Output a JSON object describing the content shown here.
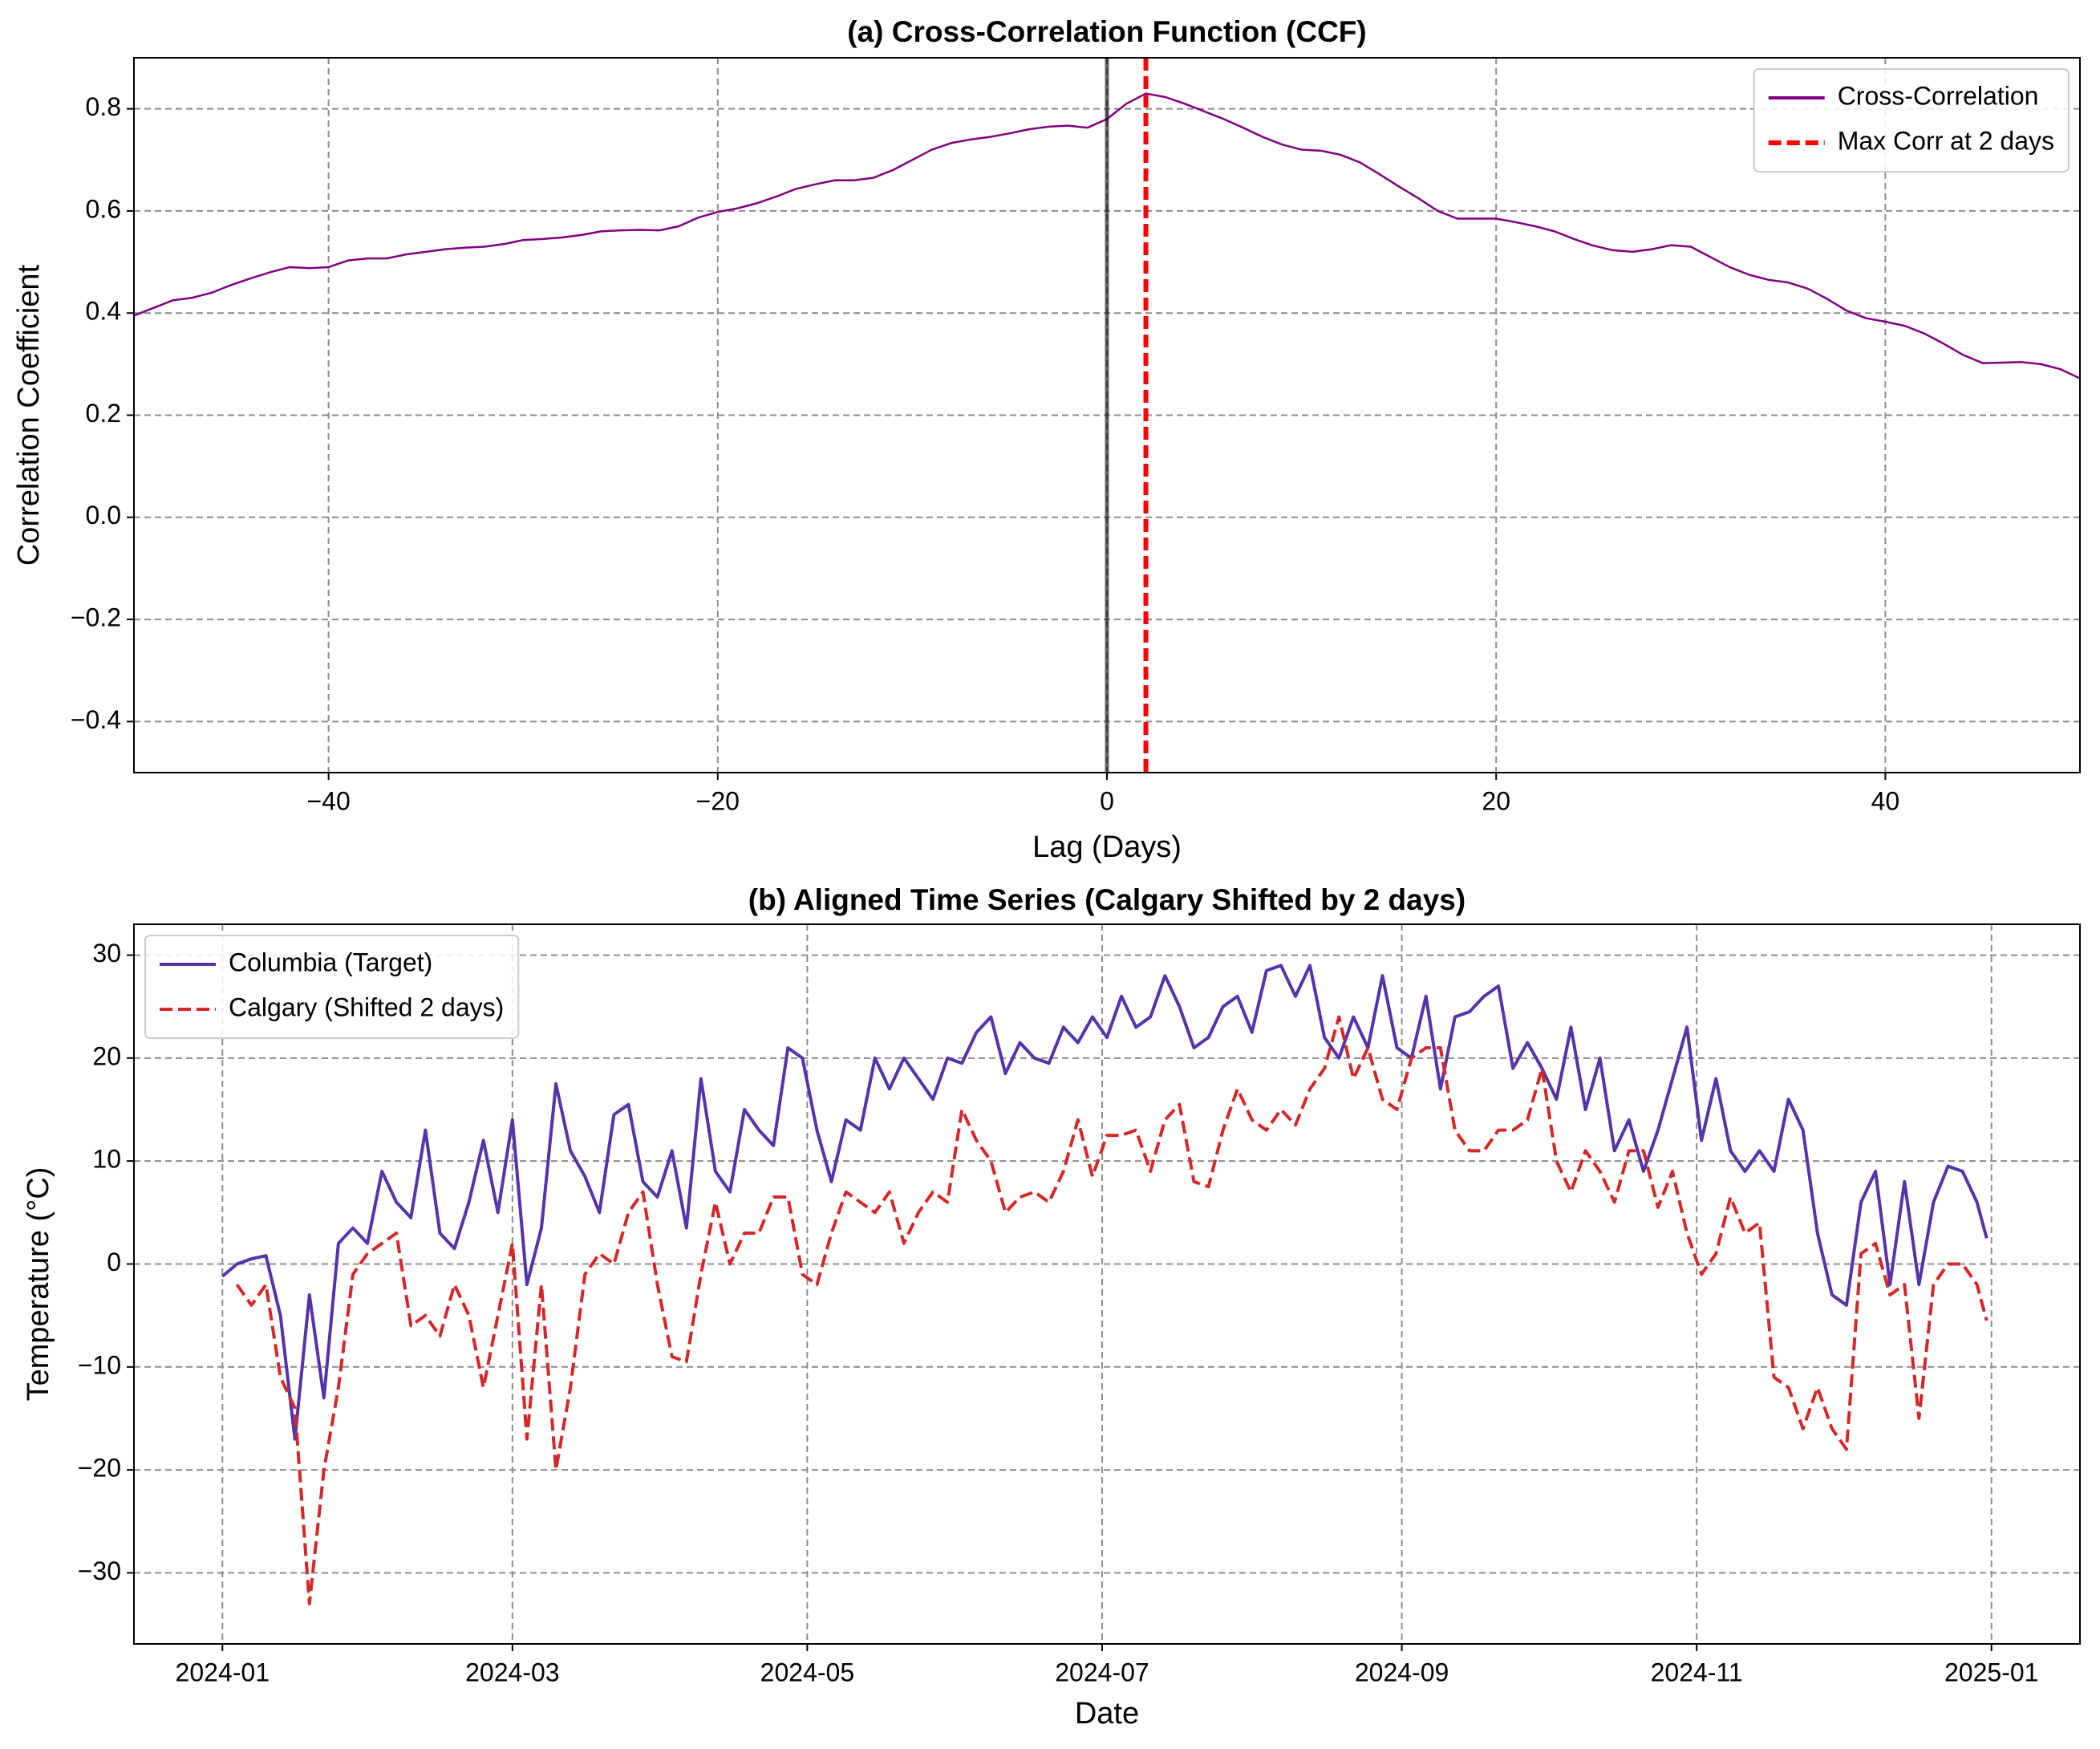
{
  "chart_data": [
    {
      "type": "line",
      "title": "(a) Cross-Correlation Function (CCF)",
      "xlabel": "Lag (Days)",
      "ylabel": "Correlation Coefficient",
      "x": [
        -50,
        -49,
        -48,
        -47,
        -46,
        -45,
        -44,
        -43,
        -42,
        -41,
        -40,
        -39,
        -38,
        -37,
        -36,
        -35,
        -34,
        -33,
        -32,
        -31,
        -30,
        -29,
        -28,
        -27,
        -26,
        -25,
        -24,
        -23,
        -22,
        -21,
        -20,
        -19,
        -18,
        -17,
        -16,
        -15,
        -14,
        -13,
        -12,
        -11,
        -10,
        -9,
        -8,
        -7,
        -6,
        -5,
        -4,
        -3,
        -2,
        -1,
        0,
        1,
        2,
        3,
        4,
        5,
        6,
        7,
        8,
        9,
        10,
        11,
        12,
        13,
        14,
        15,
        16,
        17,
        18,
        19,
        20,
        21,
        22,
        23,
        24,
        25,
        26,
        27,
        28,
        29,
        30,
        31,
        32,
        33,
        34,
        35,
        36,
        37,
        38,
        39,
        40,
        41,
        42,
        43,
        44,
        45,
        46,
        47,
        48,
        49,
        50
      ],
      "series": [
        {
          "name": "Cross-Correlation",
          "color": "#800080",
          "style": "solid",
          "values": [
            0.395,
            0.41,
            0.425,
            0.43,
            0.44,
            0.455,
            0.468,
            0.48,
            0.49,
            0.488,
            0.49,
            0.503,
            0.507,
            0.507,
            0.515,
            0.52,
            0.525,
            0.528,
            0.53,
            0.535,
            0.543,
            0.545,
            0.548,
            0.553,
            0.56,
            0.562,
            0.563,
            0.562,
            0.57,
            0.587,
            0.598,
            0.605,
            0.615,
            0.628,
            0.643,
            0.652,
            0.66,
            0.66,
            0.665,
            0.68,
            0.7,
            0.72,
            0.733,
            0.74,
            0.745,
            0.752,
            0.76,
            0.765,
            0.767,
            0.763,
            0.78,
            0.81,
            0.83,
            0.823,
            0.81,
            0.795,
            0.78,
            0.763,
            0.745,
            0.73,
            0.72,
            0.718,
            0.71,
            0.695,
            0.672,
            0.648,
            0.625,
            0.6,
            0.585,
            0.585,
            0.585,
            0.578,
            0.57,
            0.56,
            0.545,
            0.532,
            0.523,
            0.52,
            0.525,
            0.533,
            0.53,
            0.51,
            0.49,
            0.475,
            0.465,
            0.46,
            0.448,
            0.428,
            0.405,
            0.39,
            0.383,
            0.375,
            0.36,
            0.34,
            0.318,
            0.302,
            0.303,
            0.304,
            0.3,
            0.29,
            0.272
          ]
        }
      ],
      "vlines": [
        {
          "x": 0,
          "color": "#000000",
          "alpha": 0.6,
          "style": "solid"
        },
        {
          "name": "Max Corr at 2 days",
          "x": 2,
          "color": "#ff0000",
          "style": "dashed"
        }
      ],
      "xlim": [
        -50,
        50
      ],
      "xticks": [
        {
          "value": -40,
          "label": "−40"
        },
        {
          "value": -20,
          "label": "−20"
        },
        0,
        20,
        40
      ],
      "ylim": [
        -0.5,
        0.9
      ],
      "yticks": [
        {
          "value": -0.4,
          "label": "−0.4"
        },
        {
          "value": -0.2,
          "label": "−0.2"
        },
        {
          "value": 0,
          "label": "0.0"
        },
        0.2,
        0.4,
        0.6,
        0.8
      ],
      "grid": true,
      "legend": "upper right"
    },
    {
      "type": "line",
      "title": "(b) Aligned Time Series (Calgary Shifted by 2 days)",
      "xlabel": "Date",
      "ylabel": "Temperature (°C)",
      "x": [
        0,
        3,
        6,
        9,
        12,
        15,
        18,
        21,
        24,
        27,
        30,
        33,
        36,
        39,
        42,
        45,
        48,
        51,
        54,
        57,
        60,
        63,
        66,
        69,
        72,
        75,
        78,
        81,
        84,
        87,
        90,
        93,
        96,
        99,
        102,
        105,
        108,
        111,
        114,
        117,
        120,
        123,
        126,
        129,
        132,
        135,
        138,
        141,
        144,
        147,
        150,
        153,
        156,
        159,
        162,
        165,
        168,
        171,
        174,
        177,
        180,
        183,
        186,
        189,
        192,
        195,
        198,
        201,
        204,
        207,
        210,
        213,
        216,
        219,
        222,
        225,
        228,
        231,
        234,
        237,
        240,
        243,
        246,
        249,
        252,
        255,
        258,
        261,
        264,
        267,
        270,
        273,
        276,
        279,
        282,
        285,
        288,
        291,
        294,
        297,
        300,
        303,
        306,
        309,
        312,
        315,
        318,
        321,
        324,
        327,
        330,
        333,
        336,
        339,
        342,
        345,
        348,
        351,
        354,
        357,
        360,
        363,
        365
      ],
      "series": [
        {
          "name": "Columbia (Target)",
          "color": "#5533aa",
          "style": "solid",
          "values": [
            -1.2,
            0,
            0.5,
            0.8,
            -5,
            -17,
            -3,
            -13,
            2,
            3.5,
            2,
            9,
            6,
            4.5,
            13,
            3,
            1.5,
            6,
            12,
            5,
            14,
            -2,
            3.5,
            17.5,
            11,
            8.5,
            5,
            14.5,
            15.5,
            8,
            6.5,
            11,
            3.5,
            18,
            9,
            7,
            15,
            13,
            11.5,
            21,
            20,
            13,
            8,
            14,
            13,
            20,
            17,
            20,
            18,
            16,
            20,
            19.5,
            22.5,
            24,
            18.5,
            21.5,
            20,
            19.5,
            23,
            21.5,
            24,
            22,
            26,
            23,
            24,
            28,
            25,
            21,
            22,
            25,
            26,
            22.5,
            28.5,
            29,
            26,
            29,
            22,
            20,
            24,
            21,
            28,
            21,
            20,
            26,
            17,
            24,
            24.5,
            26,
            27,
            19,
            21.5,
            19,
            16,
            23,
            15,
            20,
            11,
            14,
            9,
            13,
            18,
            23,
            12,
            18,
            11,
            9,
            11,
            9,
            16,
            13,
            3,
            -3,
            -4,
            6,
            9,
            -2,
            8,
            -2,
            6,
            9.5,
            9,
            6,
            2.5
          ]
        },
        {
          "name": "Calgary (Shifted 2 days)",
          "color": "#d62728",
          "style": "dashed",
          "values": [
            null,
            -2,
            -4,
            -2,
            -11,
            -14,
            -33,
            -20,
            -12,
            -1,
            1,
            2,
            3,
            -6,
            -5,
            -7,
            -2,
            -5,
            -12,
            -5,
            2,
            -17,
            -2,
            -20,
            -12,
            -1,
            1,
            0,
            5,
            7,
            -2,
            -9,
            -9.5,
            -1,
            6,
            0,
            3,
            3,
            6.5,
            6.5,
            -1,
            -2,
            3,
            7,
            6,
            5,
            7,
            2,
            5,
            7,
            6,
            15,
            12,
            10,
            5,
            6.5,
            7,
            6,
            9,
            14,
            8.5,
            12.5,
            12.5,
            13,
            9,
            14,
            15.5,
            8,
            7.5,
            13,
            17,
            14,
            13,
            15,
            13.5,
            17,
            19,
            24,
            18,
            21,
            16,
            15,
            20,
            21,
            21,
            13,
            11,
            11,
            13,
            13,
            14,
            19,
            10,
            7,
            11,
            9,
            6,
            11,
            11,
            5.5,
            9,
            3,
            -1,
            1,
            6.5,
            3,
            4,
            -11,
            -12,
            -16,
            -12,
            -16,
            -18,
            1,
            2,
            -3,
            -2,
            -15,
            -2,
            0,
            0,
            -2,
            -5.5
          ]
        }
      ],
      "xlim": [
        -18.3,
        384.3
      ],
      "xticks": [
        {
          "value": 0,
          "label": "2024-01"
        },
        {
          "value": 60,
          "label": "2024-03"
        },
        {
          "value": 121,
          "label": "2024-05"
        },
        {
          "value": 182,
          "label": "2024-07"
        },
        {
          "value": 244,
          "label": "2024-09"
        },
        {
          "value": 305,
          "label": "2024-11"
        },
        {
          "value": 366,
          "label": "2025-01"
        }
      ],
      "ylim": [
        -36.9,
        33
      ],
      "yticks": [
        {
          "value": -30,
          "label": "−30"
        },
        {
          "value": -20,
          "label": "−20"
        },
        {
          "value": -10,
          "label": "−10"
        },
        0,
        10,
        20,
        30
      ],
      "grid": true,
      "legend": "upper left"
    }
  ]
}
